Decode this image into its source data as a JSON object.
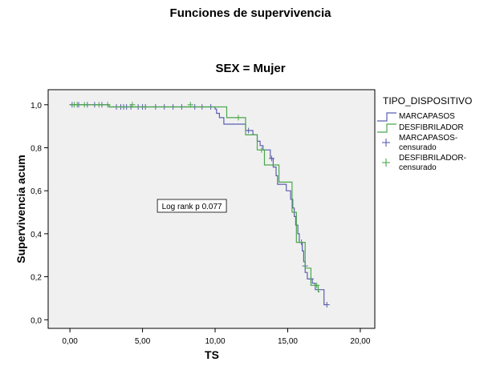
{
  "chart_data": {
    "type": "line",
    "title": "Funciones de supervivencia",
    "subtitle": "SEX = Mujer",
    "xlabel": "TS",
    "ylabel": "Supervivencia acum",
    "xlim": [
      -1.5,
      21
    ],
    "ylim": [
      -0.04,
      1.07
    ],
    "xticks": [
      0,
      5,
      10,
      15,
      20
    ],
    "xtick_labels": [
      "0,00",
      "5,00",
      "10,00",
      "15,00",
      "20,00"
    ],
    "yticks": [
      0,
      0.2,
      0.4,
      0.6,
      0.8,
      1.0
    ],
    "ytick_labels": [
      "0,0",
      "0,2",
      "0,4",
      "0,6",
      "0,8",
      "1,0"
    ],
    "grid": false,
    "plot_background": "#f0f0f0",
    "legend": {
      "title": "TIPO_DISPOSITIVO",
      "placement": "right",
      "entries": [
        {
          "label": "MARCAPASOS",
          "kind": "line",
          "color": "#5a5fb0"
        },
        {
          "label": "DESFIBRILADOR",
          "kind": "line",
          "color": "#4aa84a"
        },
        {
          "label": "MARCAPASOS-censurado",
          "lines": [
            "MARCAPASOS-",
            "censurado"
          ],
          "kind": "censor",
          "color": "#5a5fb0"
        },
        {
          "label": "DESFIBRILADOR-censurado",
          "lines": [
            "DESFIBRILADOR-",
            "censurado"
          ],
          "kind": "censor",
          "color": "#4aa84a"
        }
      ]
    },
    "annotation": {
      "text": "Log rank p 0.077",
      "x": 8.4,
      "y": 0.53
    },
    "series": [
      {
        "name": "MARCAPASOS",
        "color": "#5a5fb0",
        "steps": [
          [
            0,
            1.0
          ],
          [
            2.7,
            0.99
          ],
          [
            10.0,
            0.98
          ],
          [
            10.1,
            0.96
          ],
          [
            10.3,
            0.94
          ],
          [
            10.6,
            0.91
          ],
          [
            12.1,
            0.88
          ],
          [
            12.6,
            0.86
          ],
          [
            12.9,
            0.83
          ],
          [
            13.1,
            0.81
          ],
          [
            13.3,
            0.79
          ],
          [
            13.8,
            0.75
          ],
          [
            14.0,
            0.71
          ],
          [
            14.2,
            0.67
          ],
          [
            14.3,
            0.63
          ],
          [
            14.9,
            0.6
          ],
          [
            15.2,
            0.56
          ],
          [
            15.35,
            0.52
          ],
          [
            15.45,
            0.48
          ],
          [
            15.55,
            0.44
          ],
          [
            15.7,
            0.4
          ],
          [
            15.8,
            0.36
          ],
          [
            16.0,
            0.32
          ],
          [
            16.1,
            0.27
          ],
          [
            16.2,
            0.22
          ],
          [
            16.35,
            0.19
          ],
          [
            16.7,
            0.17
          ],
          [
            16.9,
            0.14
          ],
          [
            17.5,
            0.07
          ],
          [
            17.7,
            0.07
          ]
        ],
        "censored": [
          [
            0.15,
            1.0
          ],
          [
            0.6,
            1.0
          ],
          [
            1.2,
            1.0
          ],
          [
            1.7,
            1.0
          ],
          [
            2.2,
            1.0
          ],
          [
            3.2,
            0.99
          ],
          [
            3.5,
            0.99
          ],
          [
            3.7,
            0.99
          ],
          [
            3.9,
            0.99
          ],
          [
            4.2,
            0.99
          ],
          [
            4.7,
            0.99
          ],
          [
            5.0,
            0.99
          ],
          [
            5.2,
            0.99
          ],
          [
            5.9,
            0.99
          ],
          [
            6.5,
            0.99
          ],
          [
            7.1,
            0.99
          ],
          [
            7.7,
            0.99
          ],
          [
            8.6,
            0.99
          ],
          [
            9.1,
            0.99
          ],
          [
            9.7,
            0.99
          ],
          [
            12.3,
            0.88
          ],
          [
            13.9,
            0.75
          ],
          [
            15.95,
            0.36
          ],
          [
            16.2,
            0.25
          ],
          [
            16.6,
            0.19
          ],
          [
            17.7,
            0.07
          ]
        ]
      },
      {
        "name": "DESFIBRILADOR",
        "color": "#4aa84a",
        "steps": [
          [
            0,
            1.0
          ],
          [
            2.7,
            0.99
          ],
          [
            10.8,
            0.94
          ],
          [
            12.1,
            0.86
          ],
          [
            12.9,
            0.79
          ],
          [
            13.4,
            0.72
          ],
          [
            14.4,
            0.64
          ],
          [
            15.3,
            0.5
          ],
          [
            15.6,
            0.36
          ],
          [
            16.2,
            0.24
          ],
          [
            16.6,
            0.16
          ],
          [
            17.1,
            0.13
          ],
          [
            17.2,
            0.13
          ]
        ],
        "censored": [
          [
            0.3,
            1.0
          ],
          [
            0.5,
            1.0
          ],
          [
            1.0,
            1.0
          ],
          [
            2.0,
            1.0
          ],
          [
            2.6,
            1.0
          ],
          [
            4.3,
            1.0
          ],
          [
            8.3,
            1.0
          ],
          [
            11.6,
            0.94
          ],
          [
            13.2,
            0.79
          ],
          [
            17.0,
            0.16
          ]
        ]
      }
    ]
  }
}
